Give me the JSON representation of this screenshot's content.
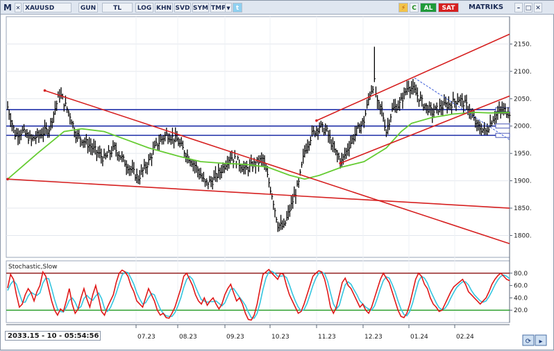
{
  "toolbar": {
    "logo": "M",
    "symbol": "XAUUSD",
    "period": "GUN",
    "currency": "TL",
    "buttons": [
      "LOG",
      "KHN",
      "SVD",
      "SYM",
      "TMP"
    ],
    "al_label": "AL",
    "sat_label": "SAT",
    "brand": "MATRIKS",
    "c_label": "C"
  },
  "status": {
    "time_label": "2033.15 - 10 - 05:54:56"
  },
  "colors": {
    "price_bars": "#000000",
    "moving_average": "#66cc33",
    "trend_lines": "#d62020",
    "horizontal_levels": "#1f2fa8",
    "stoch_k": "#e01818",
    "stoch_d": "#33c6e0",
    "upper_band": "#8b1010",
    "lower_band": "#1f9a1f"
  },
  "chart_data": [
    {
      "type": "line",
      "kind": "ohlc",
      "ylim": [
        1760,
        2200
      ],
      "y_ticks": [
        1800,
        1850,
        1900,
        1950,
        2000,
        2050,
        2100,
        2150
      ],
      "x_tick_labels": [
        "07.23",
        "08.23",
        "09.23",
        "10.23",
        "11.23",
        "12.23",
        "01.24",
        "02.24"
      ],
      "grid": true,
      "horizontal_levels": [
        2030,
        2000,
        1983
      ],
      "close_path": [
        [
          0,
          2035
        ],
        [
          5,
          1985
        ],
        [
          10,
          1990
        ],
        [
          16,
          1975
        ],
        [
          22,
          1985
        ],
        [
          28,
          1995
        ],
        [
          35,
          2060
        ],
        [
          42,
          2020
        ],
        [
          46,
          1985
        ],
        [
          55,
          1965
        ],
        [
          65,
          1940
        ],
        [
          72,
          1960
        ],
        [
          80,
          1930
        ],
        [
          88,
          1905
        ],
        [
          95,
          1935
        ],
        [
          100,
          1965
        ],
        [
          107,
          1985
        ],
        [
          114,
          1975
        ],
        [
          120,
          1950
        ],
        [
          127,
          1925
        ],
        [
          133,
          1895
        ],
        [
          138,
          1900
        ],
        [
          144,
          1920
        ],
        [
          150,
          1945
        ],
        [
          155,
          1935
        ],
        [
          160,
          1920
        ],
        [
          166,
          1930
        ],
        [
          172,
          1940
        ],
        [
          178,
          1875
        ],
        [
          182,
          1820
        ],
        [
          186,
          1815
        ],
        [
          191,
          1855
        ],
        [
          196,
          1895
        ],
        [
          200,
          1955
        ],
        [
          205,
          1985
        ],
        [
          210,
          2000
        ],
        [
          215,
          1990
        ],
        [
          220,
          1955
        ],
        [
          225,
          1935
        ],
        [
          230,
          1965
        ],
        [
          235,
          1990
        ],
        [
          240,
          2010
        ],
        [
          244,
          2060
        ],
        [
          247,
          2080
        ],
        [
          249,
          2040
        ],
        [
          252,
          2030
        ],
        [
          255,
          1990
        ],
        [
          259,
          2030
        ],
        [
          264,
          2040
        ],
        [
          270,
          2075
        ],
        [
          275,
          2060
        ],
        [
          280,
          2040
        ],
        [
          286,
          2025
        ],
        [
          292,
          2035
        ],
        [
          298,
          2040
        ],
        [
          304,
          2050
        ],
        [
          310,
          2035
        ],
        [
          316,
          2000
        ],
        [
          322,
          1990
        ],
        [
          327,
          2015
        ],
        [
          333,
          2030
        ],
        [
          338,
          2025
        ]
      ],
      "spikes": [
        [
          247,
          2145
        ],
        [
          184,
          1810
        ]
      ],
      "moving_average": [
        [
          0,
          1903
        ],
        [
          20,
          1950
        ],
        [
          38,
          1990
        ],
        [
          50,
          1995
        ],
        [
          65,
          1990
        ],
        [
          80,
          1975
        ],
        [
          95,
          1960
        ],
        [
          115,
          1945
        ],
        [
          130,
          1935
        ],
        [
          145,
          1932
        ],
        [
          160,
          1930
        ],
        [
          175,
          1925
        ],
        [
          190,
          1910
        ],
        [
          200,
          1903
        ],
        [
          210,
          1910
        ],
        [
          225,
          1925
        ],
        [
          240,
          1935
        ],
        [
          255,
          1960
        ],
        [
          265,
          1990
        ],
        [
          272,
          2005
        ],
        [
          285,
          2015
        ],
        [
          300,
          2022
        ],
        [
          315,
          2025
        ],
        [
          325,
          2024
        ],
        [
          338,
          2025
        ]
      ],
      "trend_lines": [
        [
          [
            25,
            2065
          ],
          [
            338,
            1785
          ]
        ],
        [
          [
            0,
            1903
          ],
          [
            338,
            1850
          ]
        ],
        [
          [
            208,
            2010
          ],
          [
            338,
            2168
          ]
        ],
        [
          [
            224,
            1932
          ],
          [
            338,
            2055
          ]
        ]
      ],
      "dashed_trend": [
        [
          274,
          2088
        ],
        [
          338,
          1975
        ]
      ]
    },
    {
      "type": "line",
      "title": "Stochastic,Slow",
      "ylim": [
        0,
        100
      ],
      "y_ticks": [
        20,
        40,
        60,
        80
      ],
      "upper_band": 80,
      "lower_band": 20,
      "series": [
        {
          "key": "k",
          "values": [
            56,
            78,
            70,
            45,
            25,
            30,
            45,
            55,
            48,
            35,
            50,
            60,
            82,
            75,
            55,
            35,
            20,
            12,
            22,
            18,
            35,
            55,
            30,
            15,
            22,
            40,
            55,
            38,
            25,
            45,
            60,
            40,
            18,
            12,
            25,
            35,
            45,
            65,
            80,
            85,
            82,
            75,
            60,
            50,
            35,
            30,
            25,
            40,
            55,
            45,
            35,
            20,
            12,
            15,
            8,
            7,
            15,
            25,
            40,
            55,
            75,
            80,
            70,
            60,
            45,
            35,
            30,
            40,
            28,
            35,
            40,
            30,
            22,
            30,
            45,
            55,
            62,
            48,
            35,
            40,
            30,
            15,
            5,
            4,
            12,
            30,
            55,
            78,
            82,
            86,
            80,
            75,
            70,
            80,
            78,
            60,
            45,
            35,
            25,
            15,
            18,
            30,
            45,
            60,
            75,
            80,
            84,
            82,
            70,
            50,
            25,
            15,
            25,
            45,
            65,
            72,
            60,
            55,
            45,
            35,
            25,
            30,
            20,
            15,
            25,
            40,
            55,
            70,
            80,
            72,
            65,
            50,
            35,
            20,
            10,
            8,
            15,
            30,
            50,
            70,
            80,
            75,
            62,
            55,
            40,
            30,
            25,
            18,
            20,
            30,
            40,
            50,
            58,
            62,
            66,
            70,
            62,
            50,
            45,
            40,
            35,
            30,
            35,
            40,
            50,
            62,
            70,
            76,
            80,
            75,
            70,
            68
          ]
        },
        {
          "key": "d",
          "values": [
            52,
            62,
            68,
            62,
            47,
            33,
            33,
            43,
            49,
            46,
            44,
            48,
            64,
            72,
            71,
            55,
            37,
            22,
            18,
            17,
            25,
            36,
            40,
            33,
            22,
            26,
            39,
            44,
            39,
            36,
            43,
            48,
            39,
            23,
            18,
            24,
            35,
            48,
            63,
            77,
            82,
            81,
            72,
            62,
            48,
            38,
            30,
            32,
            40,
            47,
            45,
            33,
            22,
            15,
            11,
            10,
            10,
            16,
            27,
            40,
            57,
            70,
            75,
            70,
            58,
            47,
            37,
            35,
            33,
            34,
            34,
            35,
            31,
            27,
            32,
            43,
            54,
            55,
            48,
            41,
            35,
            28,
            17,
            8,
            7,
            15,
            32,
            54,
            72,
            82,
            83,
            80,
            75,
            75,
            76,
            73,
            61,
            47,
            35,
            25,
            19,
            21,
            31,
            45,
            60,
            72,
            80,
            82,
            79,
            67,
            48,
            30,
            22,
            28,
            45,
            61,
            66,
            62,
            53,
            45,
            35,
            30,
            25,
            22,
            20,
            27,
            40,
            55,
            68,
            74,
            72,
            62,
            50,
            35,
            22,
            13,
            11,
            18,
            32,
            50,
            67,
            75,
            72,
            64,
            52,
            42,
            32,
            24,
            21,
            23,
            30,
            40,
            49,
            57,
            62,
            66,
            66,
            61,
            52,
            45,
            40,
            35,
            33,
            35,
            42,
            51,
            61,
            69,
            75,
            77,
            75,
            71
          ]
        }
      ]
    }
  ]
}
